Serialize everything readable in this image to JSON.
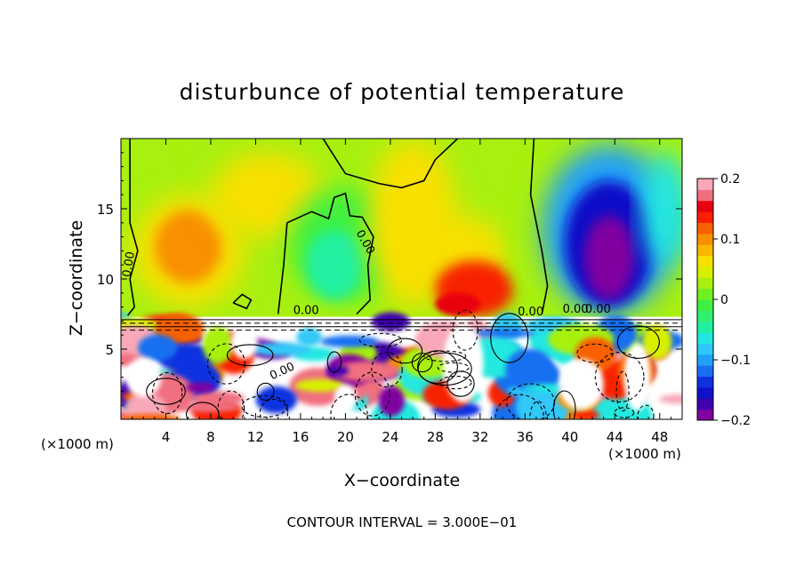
{
  "chart_data": {
    "type": "heatmap",
    "title": "disturbunce of potential temperature",
    "xlabel": "X−coordinate",
    "ylabel": "Z−coordinate",
    "x_unit_left": "(×1000 m)",
    "x_unit_right": "(×1000 m)",
    "x_ticks": [
      "4",
      "8",
      "12",
      "16",
      "20",
      "24",
      "28",
      "32",
      "36",
      "40",
      "44",
      "48"
    ],
    "y_ticks": [
      "5",
      "10",
      "15"
    ],
    "xlim": [
      0,
      50
    ],
    "ylim": [
      0,
      20
    ],
    "contour_labels": [
      "0.00",
      "0.00",
      "0.00",
      "0.00",
      "0.00",
      "0.00",
      "0.00"
    ],
    "footer": "CONTOUR INTERVAL = 3.000E−01",
    "colorbar": {
      "range": [
        -0.2,
        0.2
      ],
      "tick_labels": [
        "0.2",
        "0.1",
        "0",
        "−0.1",
        "−0.2"
      ],
      "tick_values": [
        0.2,
        0.1,
        0,
        -0.1,
        -0.2
      ],
      "colors": [
        "#8000a0",
        "#4000b0",
        "#1010c8",
        "#1030e0",
        "#1870f0",
        "#20a0f8",
        "#30c8f8",
        "#20e8e0",
        "#20f0a0",
        "#30f070",
        "#40f040",
        "#70f020",
        "#a8f010",
        "#d8f000",
        "#f8e000",
        "#f8b800",
        "#f89000",
        "#f86000",
        "#f82000",
        "#e80010",
        "#f07080",
        "#f8a8b8"
      ]
    },
    "grid": false,
    "legend": "colorbar-right",
    "features": [
      {
        "name": "warm-anomaly-x6",
        "x": 6,
        "z": 12,
        "value": 0.11
      },
      {
        "name": "warm-anomaly-x31",
        "x": 31,
        "z": 9.5,
        "value": 0.15
      },
      {
        "name": "cool-anomaly-x19",
        "x": 19,
        "z": 11,
        "value": -0.05
      },
      {
        "name": "cold-anomaly-x43",
        "x": 43,
        "z": 12,
        "value": -0.19
      },
      {
        "name": "turbulent-boundary-layer",
        "z_top": 7.3
      }
    ]
  }
}
